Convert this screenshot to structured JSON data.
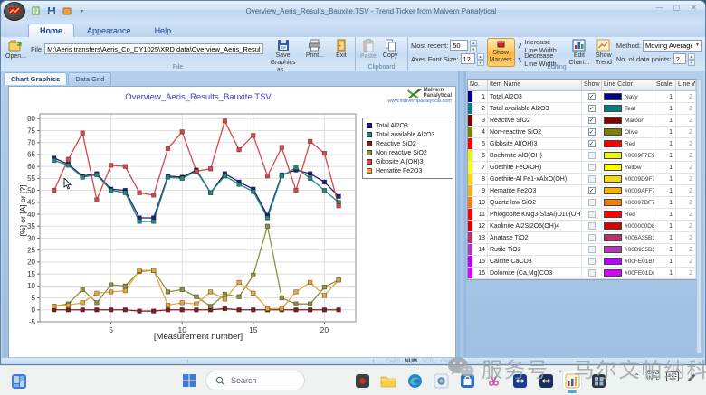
{
  "window": {
    "title": "Overview_Aeris_Results_Bauxite.TSV - Trend Ticker from Malvern Panalytical"
  },
  "menu_tabs": [
    {
      "label": "Home",
      "active": true
    },
    {
      "label": "Appearance",
      "active": false
    },
    {
      "label": "Help",
      "active": false
    }
  ],
  "ribbon": {
    "file": {
      "group_label": "File",
      "open_label": "Open...",
      "file_field_label": "File",
      "path": "M:\\Aeris transfers\\Aeris_Co_DY1025\\XRD data\\Overview_Aeris_Results_Bauxite.TSV",
      "save_label": "Save Graphics as...",
      "print_label": "Print...",
      "exit_label": "Exit"
    },
    "clipboard": {
      "group_label": "Clipboard",
      "paste_label": "Paste",
      "copy_label": "Copy"
    },
    "editing": {
      "group_label": "Editing",
      "most_recent_label": "Most recent:",
      "most_recent_value": "50",
      "axes_font_label": "Axes Font Size:",
      "axes_font_value": "12",
      "show_markers_label": "Show Markers",
      "increase_label": "Increase Line Width",
      "decrease_label": "Decrease Line Width",
      "edit_chart_label": "Edit Chart...",
      "show_trend_label": "Show Trend",
      "method_label": "Method:",
      "method_value": "Moving Average",
      "points_label": "No. of data points:",
      "points_value": "2"
    }
  },
  "view_tabs": [
    {
      "label": "Chart Graphics",
      "active": true
    },
    {
      "label": "Data Grid",
      "active": false
    }
  ],
  "logo": {
    "line1": "Malvern",
    "line2": "Panalytical",
    "url": "www.malvernpanalytical.com"
  },
  "chart_data": {
    "type": "line",
    "title": "Overview_Aeris_Results_Bauxite.TSV",
    "xlabel": "[Measurement number]",
    "ylabel": "[%] or [A] or [?]",
    "ylim": [
      -5,
      80
    ],
    "ytick_step": 5,
    "xticks": [
      5,
      10,
      15,
      20
    ],
    "grid": true,
    "legend_position": "right-top",
    "x": [
      1,
      2,
      3,
      4,
      5,
      6,
      7,
      8,
      9,
      10,
      11,
      12,
      13,
      14,
      15,
      16,
      17,
      18,
      19,
      20,
      21
    ],
    "series": [
      {
        "name": "Total Al2O3",
        "color": "#22227E",
        "values": [
          63.5,
          61,
          56,
          57,
          50.5,
          50,
          38.5,
          38.5,
          56,
          55.5,
          58.5,
          49,
          57,
          53.5,
          50.5,
          39.5,
          56.5,
          58.5,
          57,
          53.5,
          47.5
        ]
      },
      {
        "name": "Total available Al2O3",
        "color": "#26897E",
        "values": [
          62.5,
          60.5,
          55.5,
          56.5,
          50,
          49,
          37,
          37,
          55.5,
          55,
          58,
          49,
          56,
          52.5,
          49.5,
          38.5,
          56,
          59.5,
          55,
          50,
          45
        ]
      },
      {
        "name": "Reactive SiO2",
        "color": "#7E1E1E",
        "values": [
          0,
          0,
          0,
          0,
          0,
          0,
          -0.5,
          -0.5,
          0,
          0,
          0,
          0,
          0.5,
          0,
          0,
          0,
          0,
          0,
          0,
          0,
          0
        ]
      },
      {
        "name": "Non reactive SiO2",
        "color": "#8E9140",
        "values": [
          1.5,
          2.5,
          8.5,
          3,
          10.5,
          10,
          16,
          16.5,
          7.5,
          8.5,
          5.5,
          1.5,
          6.5,
          5.5,
          14.5,
          35,
          5,
          2.5,
          2.5,
          9.5,
          12.5
        ]
      },
      {
        "name": "Gibbsite Al(OH)3",
        "color": "#D6494B",
        "values": [
          50,
          63,
          74,
          46,
          60.5,
          60,
          49,
          48,
          67.5,
          74.5,
          58,
          59,
          79,
          67,
          73,
          56,
          68,
          50,
          70.5,
          65.5,
          43.5
        ]
      },
      {
        "name": "Hematite Fe2O3",
        "color": "#E2A93B",
        "values": [
          1.5,
          2,
          3,
          7,
          7.5,
          8,
          16.5,
          16.5,
          2,
          3,
          2.5,
          7.5,
          4.5,
          11.5,
          7,
          0.5,
          0.5,
          7.5,
          11.5,
          6,
          12.5
        ]
      }
    ]
  },
  "series_table": {
    "headers": [
      "No.",
      "Item Name",
      "Show",
      "Line Color",
      "Scale",
      "Line Width"
    ],
    "rows": [
      {
        "no": "1",
        "name": "Total Al2O3",
        "show": true,
        "color_name": "Navy",
        "swatch": "#000080",
        "scale": "1",
        "line_width": "2"
      },
      {
        "no": "2",
        "name": "Total available Al2O3",
        "show": true,
        "color_name": "Teal",
        "swatch": "#008080",
        "scale": "1",
        "line_width": "2"
      },
      {
        "no": "3",
        "name": "Reactive SiO2",
        "show": true,
        "color_name": "Maroon",
        "swatch": "#800000",
        "scale": "1",
        "line_width": "2"
      },
      {
        "no": "4",
        "name": "Non-reactive SiO2",
        "show": true,
        "color_name": "Olive",
        "swatch": "#808000",
        "scale": "1",
        "line_width": "2"
      },
      {
        "no": "5",
        "name": "Gibbsite Al(OH)3",
        "show": true,
        "color_name": "Red",
        "swatch": "#FF0000",
        "scale": "1",
        "line_width": "2"
      },
      {
        "no": "6",
        "name": "Boehmite AlO(OH)",
        "show": false,
        "color_name": "#0009F7E9",
        "swatch": "#E9F709",
        "scale": "1",
        "line_width": "2"
      },
      {
        "no": "7",
        "name": "Goethite FeO(OH)",
        "show": false,
        "color_name": "Yellow",
        "swatch": "#FFFF00",
        "scale": "1",
        "line_width": "2"
      },
      {
        "no": "8",
        "name": "Goethite-Al Fe1-xAlxO(OH)",
        "show": false,
        "color_name": "#0009D9F7",
        "swatch": "#F7D909",
        "scale": "1",
        "line_width": "2"
      },
      {
        "no": "9",
        "name": "Hematite Fe2O3",
        "show": true,
        "color_name": "#0009AFF7",
        "swatch": "#F7AF09",
        "scale": "1",
        "line_width": "2"
      },
      {
        "no": "10",
        "name": "Quartz low SiO2",
        "show": false,
        "color_name": "#00097BF7",
        "swatch": "#F77B09",
        "scale": "1",
        "line_width": "2"
      },
      {
        "no": "11",
        "name": "Phlogopite KMg3(Si3Al)O10(OH)2",
        "show": false,
        "color_name": "Red",
        "swatch": "#FF0000",
        "scale": "1",
        "line_width": "2"
      },
      {
        "no": "12",
        "name": "Kaolinite Al2Si2O5(OH)4",
        "show": false,
        "color_name": "#000000D8",
        "swatch": "#D80000",
        "scale": "1",
        "line_width": "2"
      },
      {
        "no": "13",
        "name": "Anatase TiO2",
        "show": false,
        "color_name": "#006A35B3",
        "swatch": "#B3356A",
        "scale": "1",
        "line_width": "2"
      },
      {
        "no": "14",
        "name": "Rutile TiO2",
        "show": false,
        "color_name": "#00B935B3",
        "swatch": "#B335B9",
        "scale": "1",
        "line_width": "2"
      },
      {
        "no": "15",
        "name": "Calcite CaCO3",
        "show": false,
        "color_name": "#00FE01B9",
        "swatch": "#B901FE",
        "scale": "1",
        "line_width": "2"
      },
      {
        "no": "16",
        "name": "Dolomite (Ca,Mg)CO3",
        "show": false,
        "color_name": "#00FE01D8",
        "swatch": "#D801FE",
        "scale": "1",
        "line_width": "2"
      }
    ]
  },
  "statusbar": {
    "indicators": [
      {
        "label": "CAPS",
        "active": false
      },
      {
        "label": "NUM",
        "active": true
      },
      {
        "label": "SCRL",
        "active": false
      },
      {
        "label": "OVR",
        "active": false
      }
    ]
  },
  "taskbar": {
    "search_placeholder": "Search",
    "language_line1": "ENG",
    "language_line2": "INTL"
  },
  "watermark": {
    "text": "服务号 · 马尔文帕纳科"
  }
}
